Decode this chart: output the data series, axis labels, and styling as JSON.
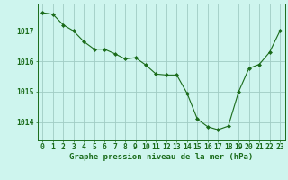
{
  "x": [
    0,
    1,
    2,
    3,
    4,
    5,
    6,
    7,
    8,
    9,
    10,
    11,
    12,
    13,
    14,
    15,
    16,
    17,
    18,
    19,
    20,
    21,
    22,
    23
  ],
  "y": [
    1017.6,
    1017.55,
    1017.2,
    1017.0,
    1016.65,
    1016.4,
    1016.4,
    1016.25,
    1016.08,
    1016.12,
    1015.88,
    1015.58,
    1015.55,
    1015.55,
    1014.95,
    1014.1,
    1013.85,
    1013.75,
    1013.87,
    1015.0,
    1015.77,
    1015.9,
    1016.3,
    1017.0
  ],
  "line_color": "#1a6b1a",
  "marker": "D",
  "marker_size": 2.0,
  "bg_color": "#cef5ee",
  "grid_color": "#a0ccc4",
  "ylabel_ticks": [
    1014,
    1015,
    1016,
    1017
  ],
  "xlabel_label": "Graphe pression niveau de la mer (hPa)",
  "xlim": [
    -0.5,
    23.5
  ],
  "ylim": [
    1013.4,
    1017.9
  ],
  "label_fontsize": 6.5,
  "tick_fontsize": 5.8
}
